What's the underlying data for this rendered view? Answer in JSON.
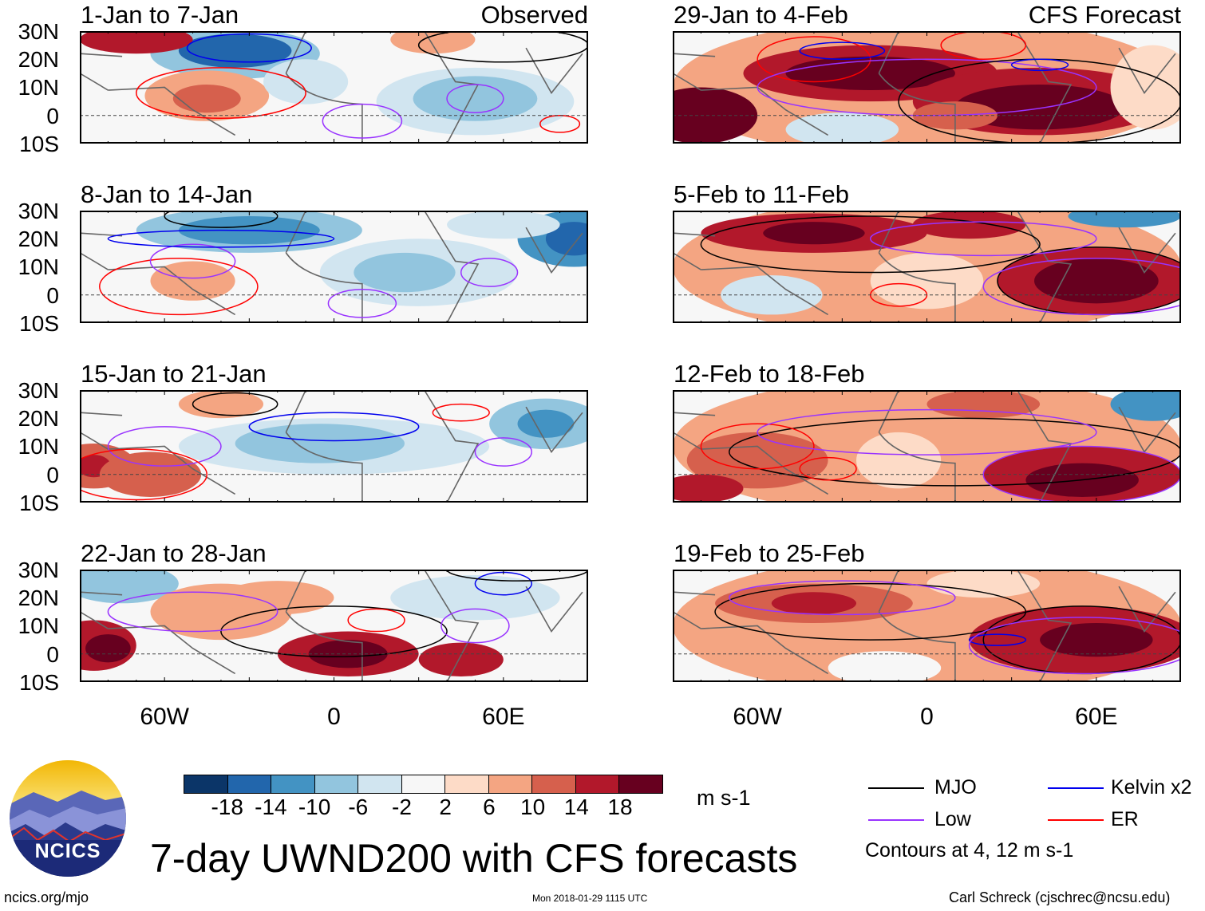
{
  "colors": {
    "scale": [
      "#0b3568",
      "#2266ac",
      "#4393c3",
      "#92c5de",
      "#d1e5f0",
      "#f7f7f7",
      "#fddbc7",
      "#f4a582",
      "#d6604d",
      "#b2182b",
      "#67001f"
    ],
    "mjo": "#000000",
    "low": "#9933ff",
    "kelvin": "#0000ee",
    "er": "#ff0000",
    "coast": "#666666"
  },
  "headers": {
    "observed": "Observed",
    "forecast": "CFS Forecast"
  },
  "lat_labels": [
    "30N",
    "20N",
    "10N",
    "0",
    "10S"
  ],
  "lon_labels": [
    "60W",
    "0",
    "60E"
  ],
  "colorbar": {
    "labels": [
      "-18",
      "-14",
      "-10",
      "-6",
      "-2",
      "2",
      "6",
      "10",
      "14",
      "18"
    ],
    "units": "m s-1",
    "levels": [
      -18,
      -14,
      -10,
      -6,
      -2,
      2,
      6,
      10,
      14,
      18
    ]
  },
  "legend": {
    "mjo": "MJO",
    "kelvin": "Kelvin x2",
    "low": "Low",
    "er": "ER",
    "note": "Contours at 4, 12 m s-1"
  },
  "title": "7-day UWND200 with CFS forecasts",
  "logo_text": "NCICS",
  "footer": {
    "url": "ncics.org/mjo",
    "timestamp": "Mon 2018-01-29 1115 UTC",
    "author": "Carl Schreck (cjschrec@ncsu.edu)"
  },
  "chart_data": {
    "type": "heatmap",
    "lon_range": [
      -90,
      90
    ],
    "lat_range": [
      -10,
      30
    ],
    "panels": [
      {
        "title": "1-Jan to 7-Jan",
        "group": "Observed",
        "blobs": [
          [
            0,
            10,
            90,
            25,
            -2
          ],
          [
            -35,
            22,
            30,
            9,
            -10
          ],
          [
            -35,
            23,
            20,
            6,
            -18
          ],
          [
            -70,
            27,
            20,
            5,
            14
          ],
          [
            -45,
            7,
            22,
            9,
            6
          ],
          [
            -45,
            6,
            12,
            5,
            10
          ],
          [
            50,
            5,
            35,
            12,
            -6
          ],
          [
            50,
            6,
            22,
            8,
            -10
          ],
          [
            35,
            27,
            15,
            5,
            6
          ],
          [
            -10,
            12,
            15,
            8,
            -6
          ]
        ],
        "contours": [
          [
            "er",
            -40,
            8,
            30,
            9
          ],
          [
            "kelvin",
            -30,
            24,
            22,
            5
          ],
          [
            "low",
            10,
            -2,
            14,
            6
          ],
          [
            "mjo",
            60,
            25,
            30,
            6
          ],
          [
            "low",
            50,
            6,
            10,
            5
          ],
          [
            "er",
            80,
            -3,
            7,
            3
          ]
        ]
      },
      {
        "title": "8-Jan to 14-Jan",
        "group": "Observed",
        "blobs": [
          [
            0,
            10,
            90,
            25,
            -2
          ],
          [
            -30,
            23,
            40,
            8,
            -10
          ],
          [
            -30,
            23,
            25,
            5,
            -14
          ],
          [
            85,
            20,
            20,
            10,
            -14
          ],
          [
            85,
            20,
            10,
            6,
            -18
          ],
          [
            30,
            8,
            35,
            12,
            -6
          ],
          [
            25,
            8,
            18,
            7,
            -10
          ],
          [
            -50,
            5,
            15,
            7,
            6
          ],
          [
            60,
            25,
            20,
            5,
            -6
          ]
        ],
        "contours": [
          [
            "er",
            -55,
            3,
            28,
            10
          ],
          [
            "low",
            -50,
            12,
            15,
            6
          ],
          [
            "kelvin",
            -40,
            20,
            40,
            3
          ],
          [
            "low",
            10,
            -3,
            12,
            5
          ],
          [
            "low",
            55,
            8,
            10,
            5
          ],
          [
            "mjo",
            -40,
            28,
            20,
            4
          ]
        ]
      },
      {
        "title": "15-Jan to 21-Jan",
        "group": "Observed",
        "blobs": [
          [
            0,
            10,
            90,
            25,
            -2
          ],
          [
            0,
            10,
            55,
            10,
            -6
          ],
          [
            -5,
            11,
            30,
            7,
            -10
          ],
          [
            75,
            18,
            20,
            9,
            -10
          ],
          [
            75,
            18,
            10,
            5,
            -14
          ],
          [
            -85,
            3,
            15,
            8,
            10
          ],
          [
            -85,
            3,
            6,
            4,
            14
          ],
          [
            -65,
            0,
            18,
            8,
            10
          ],
          [
            -40,
            25,
            15,
            5,
            6
          ]
        ],
        "contours": [
          [
            "low",
            -60,
            10,
            20,
            7
          ],
          [
            "kelvin",
            0,
            17,
            30,
            5
          ],
          [
            "mjo",
            -35,
            25,
            15,
            4
          ],
          [
            "er",
            -70,
            0,
            25,
            9
          ],
          [
            "low",
            60,
            8,
            10,
            5
          ],
          [
            "er",
            45,
            22,
            10,
            3
          ]
        ]
      },
      {
        "title": "22-Jan to 28-Jan",
        "group": "Observed",
        "blobs": [
          [
            0,
            10,
            90,
            25,
            -2
          ],
          [
            -75,
            25,
            20,
            7,
            -10
          ],
          [
            50,
            20,
            30,
            8,
            -6
          ],
          [
            -85,
            3,
            15,
            9,
            14
          ],
          [
            -80,
            2,
            8,
            5,
            18
          ],
          [
            5,
            0,
            25,
            8,
            14
          ],
          [
            5,
            0,
            14,
            5,
            18
          ],
          [
            45,
            -2,
            15,
            6,
            14
          ],
          [
            -40,
            15,
            25,
            10,
            6
          ],
          [
            -20,
            20,
            20,
            6,
            6
          ]
        ],
        "contours": [
          [
            "mjo",
            0,
            8,
            40,
            9
          ],
          [
            "low",
            -50,
            15,
            30,
            7
          ],
          [
            "er",
            15,
            12,
            10,
            4
          ],
          [
            "kelvin",
            60,
            25,
            10,
            4
          ],
          [
            "low",
            50,
            10,
            12,
            6
          ],
          [
            "mjo",
            65,
            30,
            25,
            4
          ]
        ]
      },
      {
        "title": "29-Jan to 4-Feb",
        "group": "CFS Forecast",
        "blobs": [
          [
            0,
            10,
            90,
            25,
            6
          ],
          [
            -80,
            0,
            20,
            10,
            18
          ],
          [
            -20,
            15,
            45,
            10,
            14
          ],
          [
            -20,
            15,
            30,
            6,
            18
          ],
          [
            40,
            5,
            45,
            12,
            14
          ],
          [
            40,
            3,
            30,
            8,
            18
          ],
          [
            -30,
            -5,
            20,
            6,
            -6
          ],
          [
            80,
            10,
            15,
            15,
            2
          ],
          [
            10,
            0,
            15,
            5,
            10
          ]
        ],
        "contours": [
          [
            "er",
            -40,
            20,
            20,
            8
          ],
          [
            "kelvin",
            -30,
            23,
            15,
            3
          ],
          [
            "low",
            0,
            10,
            60,
            10
          ],
          [
            "mjo",
            40,
            5,
            50,
            15
          ],
          [
            "er",
            20,
            25,
            15,
            5
          ],
          [
            "kelvin",
            40,
            18,
            10,
            2
          ]
        ]
      },
      {
        "title": "5-Feb to 11-Feb",
        "group": "CFS Forecast",
        "blobs": [
          [
            0,
            10,
            90,
            25,
            6
          ],
          [
            60,
            5,
            35,
            12,
            14
          ],
          [
            60,
            5,
            22,
            8,
            18
          ],
          [
            -40,
            22,
            40,
            7,
            14
          ],
          [
            -40,
            22,
            18,
            4,
            18
          ],
          [
            15,
            25,
            20,
            5,
            14
          ],
          [
            70,
            28,
            20,
            4,
            -14
          ],
          [
            -55,
            0,
            18,
            7,
            -6
          ],
          [
            0,
            5,
            20,
            10,
            2
          ]
        ],
        "contours": [
          [
            "mjo",
            -20,
            18,
            60,
            10
          ],
          [
            "mjo",
            60,
            5,
            35,
            12
          ],
          [
            "er",
            -10,
            0,
            10,
            4
          ],
          [
            "low",
            20,
            20,
            40,
            6
          ],
          [
            "low",
            60,
            3,
            40,
            10
          ]
        ]
      },
      {
        "title": "12-Feb to 18-Feb",
        "group": "CFS Forecast",
        "blobs": [
          [
            0,
            10,
            90,
            25,
            6
          ],
          [
            55,
            0,
            35,
            10,
            14
          ],
          [
            55,
            -2,
            20,
            6,
            18
          ],
          [
            -60,
            5,
            25,
            10,
            10
          ],
          [
            20,
            25,
            20,
            5,
            10
          ],
          [
            80,
            25,
            15,
            6,
            -14
          ],
          [
            -10,
            5,
            15,
            10,
            2
          ],
          [
            -80,
            -5,
            15,
            5,
            14
          ]
        ],
        "contours": [
          [
            "mjo",
            10,
            8,
            80,
            12
          ],
          [
            "er",
            -60,
            10,
            20,
            8
          ],
          [
            "er",
            -35,
            2,
            10,
            4
          ],
          [
            "low",
            0,
            15,
            60,
            8
          ],
          [
            "low",
            55,
            0,
            35,
            10
          ]
        ]
      },
      {
        "title": "19-Feb to 25-Feb",
        "group": "CFS Forecast",
        "blobs": [
          [
            0,
            10,
            90,
            25,
            6
          ],
          [
            55,
            5,
            40,
            12,
            14
          ],
          [
            60,
            5,
            20,
            6,
            18
          ],
          [
            -40,
            18,
            35,
            7,
            10
          ],
          [
            -40,
            18,
            15,
            4,
            14
          ],
          [
            -15,
            -5,
            20,
            6,
            -2
          ],
          [
            20,
            25,
            20,
            5,
            2
          ]
        ],
        "contours": [
          [
            "mjo",
            -20,
            15,
            55,
            10
          ],
          [
            "mjo",
            55,
            5,
            35,
            12
          ],
          [
            "low",
            -30,
            20,
            40,
            6
          ],
          [
            "kelvin",
            25,
            5,
            10,
            2
          ],
          [
            "low",
            55,
            3,
            40,
            10
          ]
        ]
      }
    ]
  }
}
